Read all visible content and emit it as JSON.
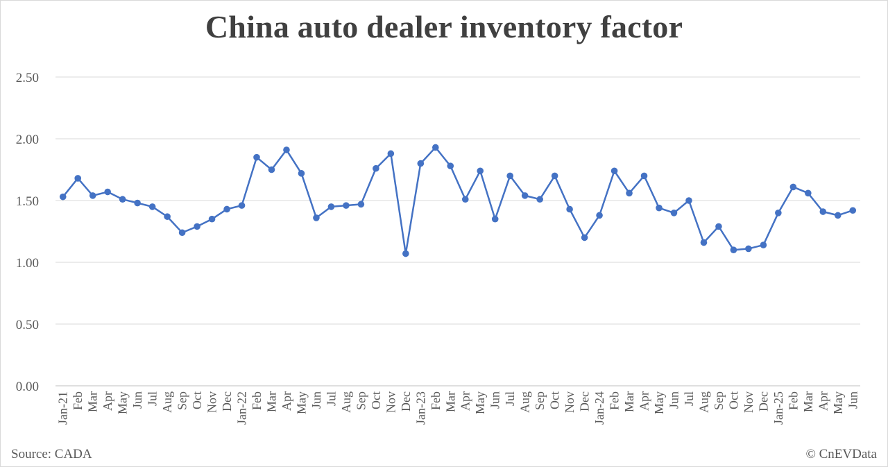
{
  "chart_data": {
    "type": "line",
    "title": "China auto dealer inventory factor",
    "source": "Source: CADA",
    "copyright": "© CnEVData",
    "xlabel": "",
    "ylabel": "",
    "ylim": [
      0,
      2.5
    ],
    "yticks": [
      "0.00",
      "0.50",
      "1.00",
      "1.50",
      "2.00",
      "2.50"
    ],
    "grid": true,
    "legend": "none",
    "color": "#4472c4",
    "x": [
      "Jan-21",
      "Feb",
      "Mar",
      "Apr",
      "May",
      "Jun",
      "Jul",
      "Aug",
      "Sep",
      "Oct",
      "Nov",
      "Dec",
      "Jan-22",
      "Feb",
      "Mar",
      "Apr",
      "May",
      "Jun",
      "Jul",
      "Aug",
      "Sep",
      "Oct",
      "Nov",
      "Dec",
      "Jan-23",
      "Feb",
      "Mar",
      "Apr",
      "May",
      "Jun",
      "Jul",
      "Aug",
      "Sep",
      "Oct",
      "Nov",
      "Dec",
      "Jan-24",
      "Feb",
      "Mar",
      "Apr",
      "May",
      "Jun",
      "Jul",
      "Aug",
      "Sep",
      "Oct",
      "Nov",
      "Dec",
      "Jan-25",
      "Feb",
      "Mar",
      "Apr",
      "May",
      "Jun"
    ],
    "series": [
      {
        "values": [
          1.53,
          1.68,
          1.54,
          1.57,
          1.51,
          1.48,
          1.45,
          1.37,
          1.24,
          1.29,
          1.35,
          1.43,
          1.46,
          1.85,
          1.75,
          1.91,
          1.72,
          1.36,
          1.45,
          1.46,
          1.47,
          1.76,
          1.88,
          1.07,
          1.8,
          1.93,
          1.78,
          1.51,
          1.74,
          1.35,
          1.7,
          1.54,
          1.51,
          1.7,
          1.43,
          1.2,
          1.38,
          1.74,
          1.56,
          1.7,
          1.44,
          1.4,
          1.5,
          1.16,
          1.29,
          1.1,
          1.11,
          1.14,
          1.4,
          1.61,
          1.56,
          1.41,
          1.38,
          1.42
        ]
      }
    ]
  }
}
